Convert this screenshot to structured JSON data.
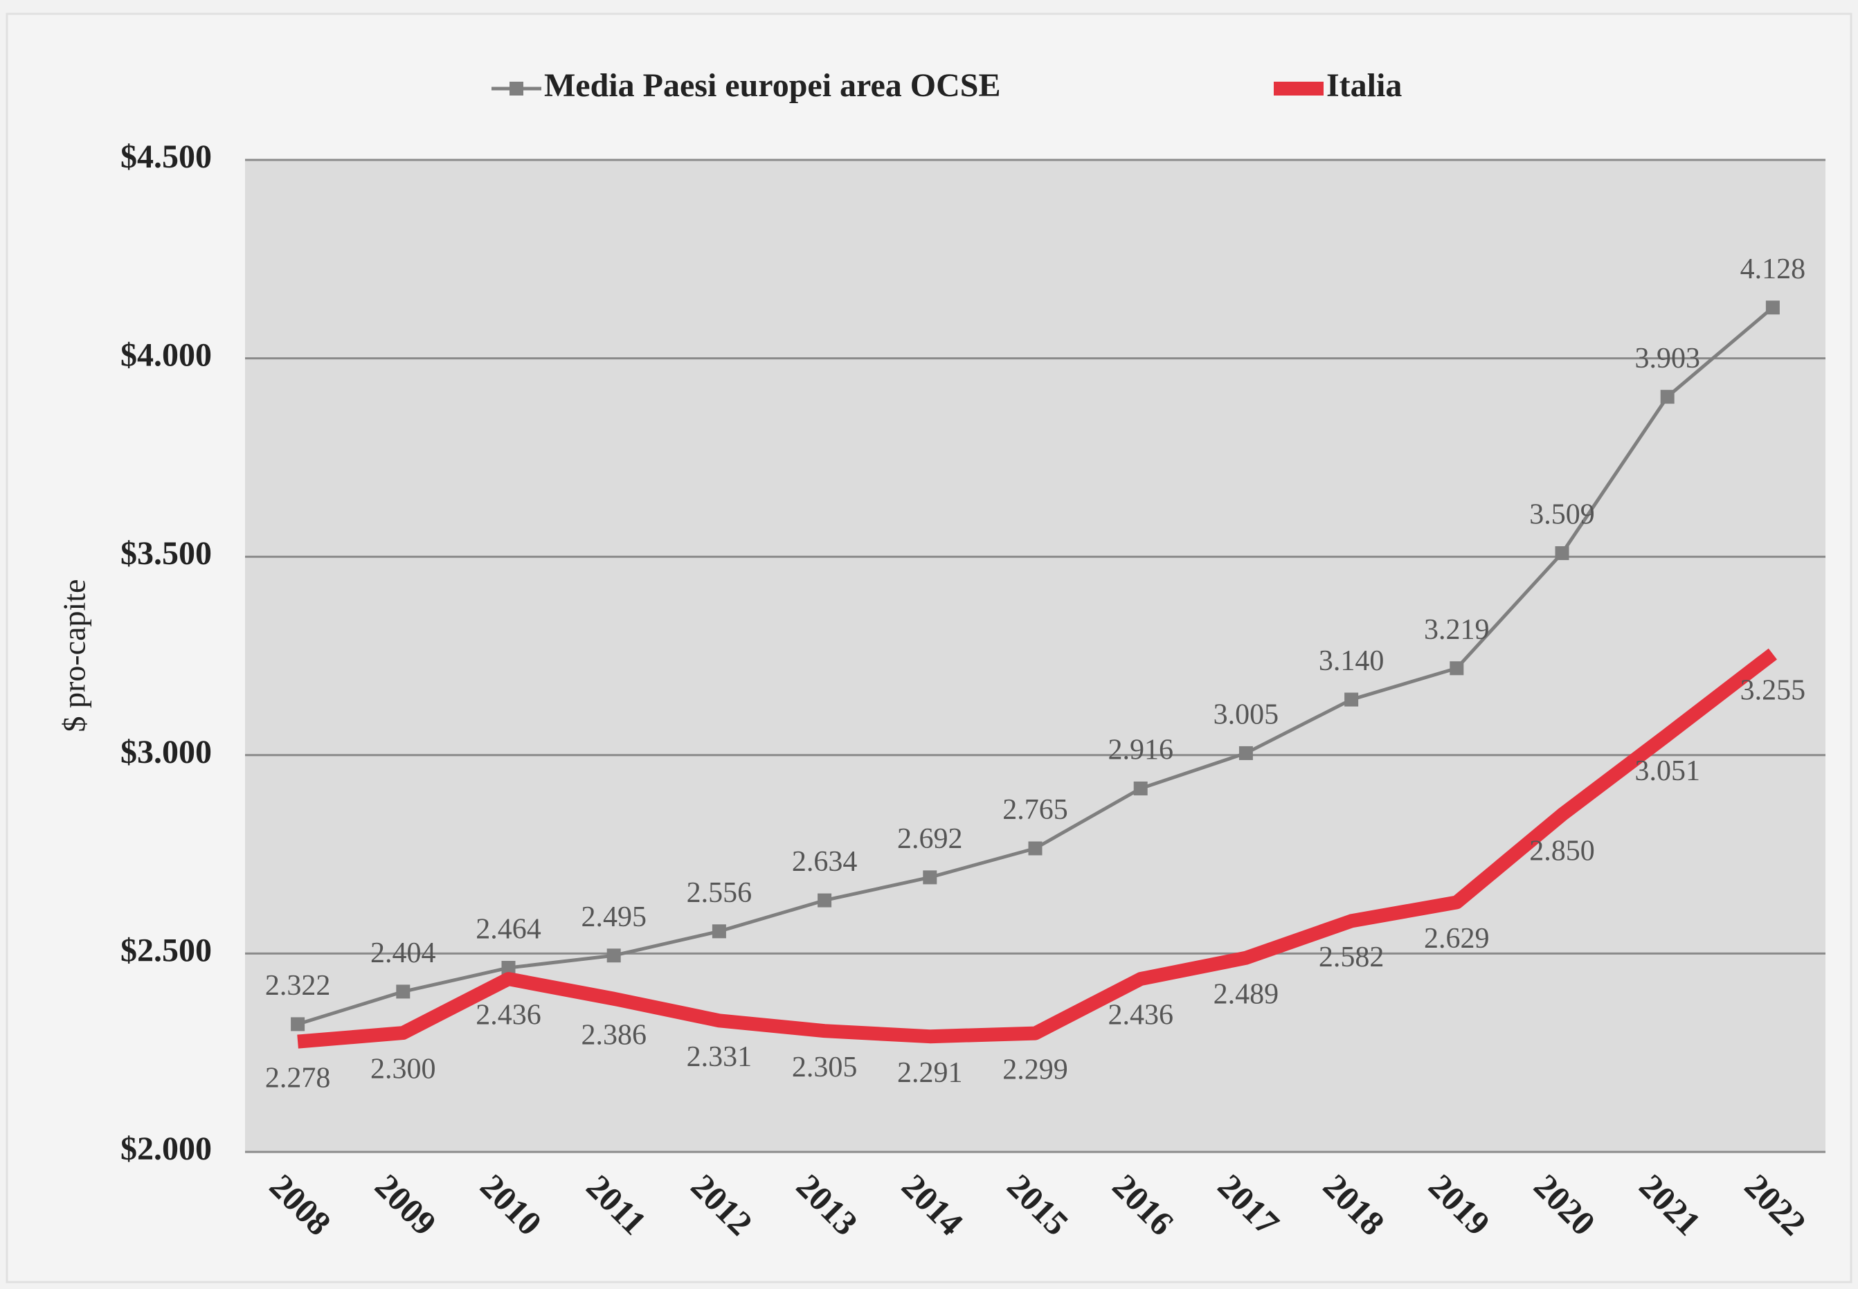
{
  "chart_data": {
    "type": "line",
    "y_label": "$ pro-capite",
    "categories": [
      "2008",
      "2009",
      "2010",
      "2011",
      "2012",
      "2013",
      "2014",
      "2015",
      "2016",
      "2017",
      "2018",
      "2019",
      "2020",
      "2021",
      "2022"
    ],
    "series": [
      {
        "name": "Media Paesi europei area OCSE",
        "color": "#7f7f7f",
        "values": [
          2322,
          2404,
          2464,
          2495,
          2556,
          2634,
          2692,
          2765,
          2916,
          3005,
          3140,
          3219,
          3509,
          3903,
          4128
        ],
        "value_labels": [
          "2.322",
          "2.404",
          "2.464",
          "2.495",
          "2.556",
          "2.634",
          "2.692",
          "2.765",
          "2.916",
          "3.005",
          "3.140",
          "3.219",
          "3.509",
          "3.903",
          "4.128"
        ]
      },
      {
        "name": "Italia",
        "color": "#e5323e",
        "values": [
          2278,
          2300,
          2436,
          2386,
          2331,
          2305,
          2291,
          2299,
          2436,
          2489,
          2582,
          2629,
          2850,
          3051,
          3255
        ],
        "value_labels": [
          "2.278",
          "2.300",
          "2.436",
          "2.386",
          "2.331",
          "2.305",
          "2.291",
          "2.299",
          "2.436",
          "2.489",
          "2.582",
          "2.629",
          "2.850",
          "3.051",
          "3.255"
        ]
      }
    ],
    "ylim": [
      2000,
      4500
    ],
    "yticks": [
      {
        "value": 2000,
        "label": "$2.000"
      },
      {
        "value": 2500,
        "label": "$2.500"
      },
      {
        "value": 3000,
        "label": "$3.000"
      },
      {
        "value": 3500,
        "label": "$3.500"
      },
      {
        "value": 4000,
        "label": "$4.000"
      },
      {
        "value": 4500,
        "label": "$4.500"
      }
    ],
    "grid": true,
    "legend": "top"
  }
}
